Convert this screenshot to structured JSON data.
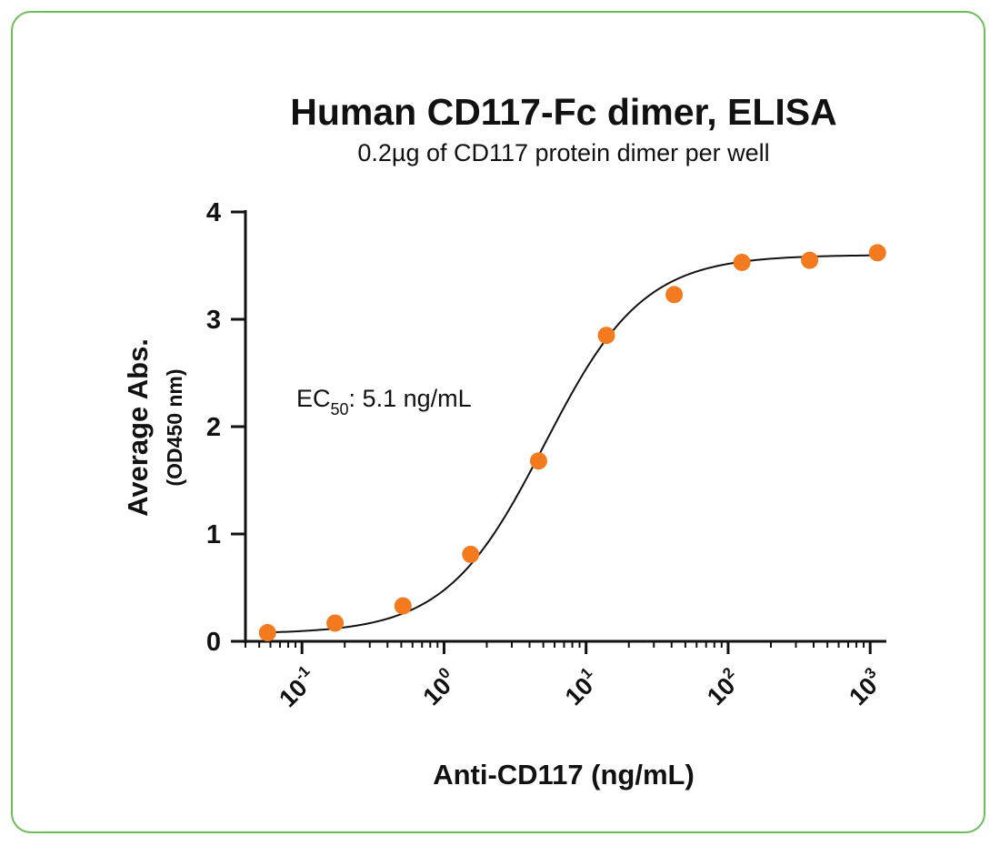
{
  "colors": {
    "frame": "#6cbd5a",
    "point": "#f47a20",
    "curve": "#111111",
    "axis": "#111111"
  },
  "chart_data": {
    "type": "scatter",
    "title": "Human CD117-Fc dimer, ELISA",
    "subtitle": "0.2µg of CD117 protein dimer per well",
    "xlabel": "Anti-CD117  (ng/mL)",
    "ylabel": "Average Abs.",
    "ylabel_sub": "(OD450 nm)",
    "xscale": "log",
    "xlim": [
      0.04,
      1300
    ],
    "ylim": [
      0,
      4
    ],
    "yticks": [
      "0",
      "1",
      "2",
      "3",
      "4"
    ],
    "xticks": [
      {
        "base": "10",
        "exp": "-1"
      },
      {
        "base": "10",
        "exp": "0"
      },
      {
        "base": "10",
        "exp": "1"
      },
      {
        "base": "10",
        "exp": "2"
      },
      {
        "base": "10",
        "exp": "3"
      }
    ],
    "annotation": {
      "prefix": "EC",
      "sub": "50",
      "suffix": ": 5.1 ng/mL"
    },
    "grid": false,
    "series": [
      {
        "x": [
          0.0572,
          0.171,
          0.514,
          1.54,
          4.63,
          13.9,
          41.7,
          125,
          375,
          1126
        ],
        "y": [
          0.08,
          0.17,
          0.33,
          0.81,
          1.68,
          2.85,
          3.23,
          3.53,
          3.55,
          3.62
        ]
      }
    ],
    "fit_curve": {
      "model": "4PL",
      "bottom": 0.07,
      "top": 3.6,
      "ec50": 5.1,
      "hill": 1.25
    }
  }
}
